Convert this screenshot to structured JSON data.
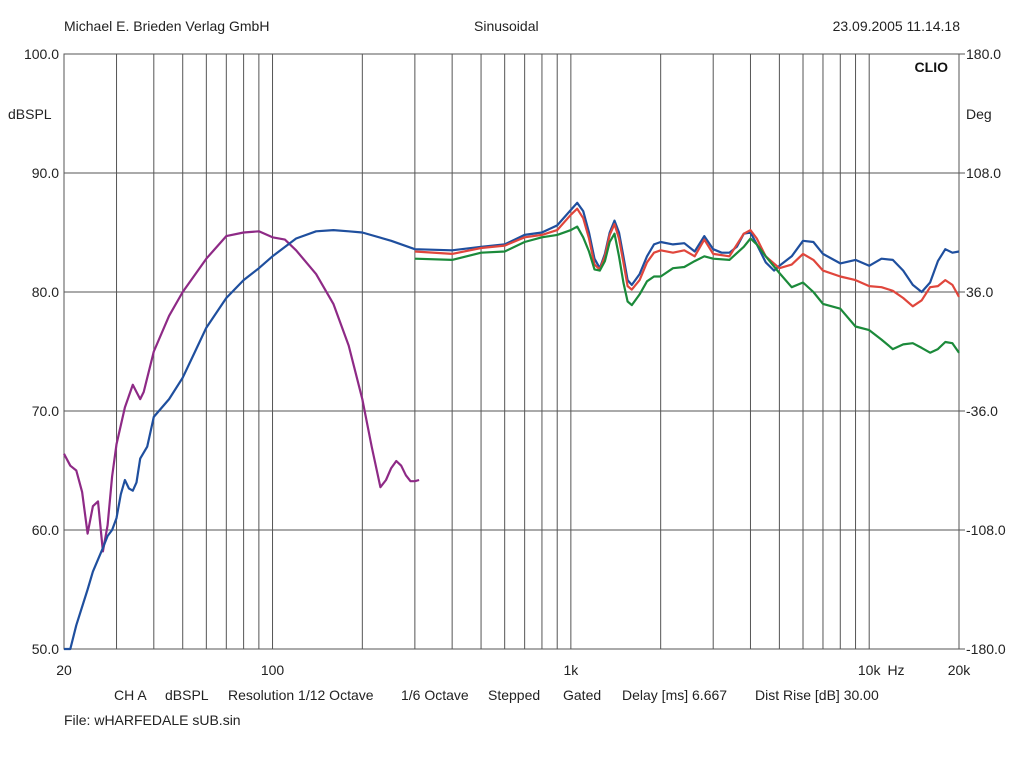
{
  "header": {
    "publisher": "Michael E. Brieden Verlag GmbH",
    "mode": "Sinusoidal",
    "timestamp": "23.09.2005 11.14.18"
  },
  "footer": {
    "settings": [
      "CH A",
      "dBSPL",
      "Resolution 1/12 Octave",
      "1/6 Octave",
      "Stepped",
      "Gated",
      "Delay [ms] 6.667",
      "Dist Rise [dB] 30.00"
    ],
    "file": "File: wHARFEDALE sUB.sin"
  },
  "chart_data": {
    "type": "line",
    "brand": "CLIO",
    "ylabel": "dBSPL",
    "y2label": "Deg",
    "xunit": "Hz",
    "xscale": "log",
    "xlim": [
      20,
      20000
    ],
    "ylim": [
      50,
      100
    ],
    "y2lim": [
      -180,
      180
    ],
    "grid": true,
    "x_ticks": [
      {
        "value": 20,
        "label": "20"
      },
      {
        "value": 100,
        "label": "100"
      },
      {
        "value": 1000,
        "label": "1k"
      },
      {
        "value": 10000,
        "label": "10k"
      },
      {
        "value": 20000,
        "label": "20k"
      }
    ],
    "y_ticks": [
      "50.0",
      "60.0",
      "70.0",
      "80.0",
      "90.0",
      "100.0"
    ],
    "y2_ticks": [
      "-180.0",
      "-108.0",
      "-36.0",
      "36.0",
      "108.0",
      "180.0"
    ],
    "series": [
      {
        "color": "#8e2a86",
        "points": [
          [
            20,
            66.4
          ],
          [
            21,
            65.4
          ],
          [
            22,
            65.0
          ],
          [
            23,
            63.2
          ],
          [
            24,
            59.7
          ],
          [
            25,
            62.0
          ],
          [
            26,
            62.4
          ],
          [
            27,
            58.2
          ],
          [
            28,
            60.4
          ],
          [
            29,
            64.5
          ],
          [
            30,
            67.2
          ],
          [
            32,
            70.3
          ],
          [
            34,
            72.2
          ],
          [
            35,
            71.6
          ],
          [
            36,
            71.0
          ],
          [
            37,
            71.6
          ],
          [
            40,
            75.0
          ],
          [
            45,
            78.0
          ],
          [
            50,
            80.0
          ],
          [
            60,
            82.8
          ],
          [
            70,
            84.7
          ],
          [
            80,
            85.0
          ],
          [
            90,
            85.1
          ],
          [
            100,
            84.6
          ],
          [
            110,
            84.4
          ],
          [
            120,
            83.5
          ],
          [
            140,
            81.5
          ],
          [
            160,
            79.0
          ],
          [
            180,
            75.5
          ],
          [
            200,
            71.0
          ],
          [
            215,
            67.0
          ],
          [
            230,
            63.6
          ],
          [
            240,
            64.2
          ],
          [
            250,
            65.2
          ],
          [
            260,
            65.8
          ],
          [
            270,
            65.4
          ],
          [
            280,
            64.6
          ],
          [
            290,
            64.1
          ],
          [
            300,
            64.1
          ],
          [
            310,
            64.2
          ]
        ]
      },
      {
        "color": "#1f4f9e",
        "points": [
          [
            20,
            50.0
          ],
          [
            21,
            50.0
          ],
          [
            22,
            52.0
          ],
          [
            24,
            55.0
          ],
          [
            25,
            56.5
          ],
          [
            27,
            58.5
          ],
          [
            28,
            59.5
          ],
          [
            29,
            60.0
          ],
          [
            30,
            61.0
          ],
          [
            31,
            63.0
          ],
          [
            32,
            64.2
          ],
          [
            33,
            63.5
          ],
          [
            34,
            63.3
          ],
          [
            35,
            64.0
          ],
          [
            36,
            66.0
          ],
          [
            38,
            67.0
          ],
          [
            40,
            69.5
          ],
          [
            45,
            71.0
          ],
          [
            50,
            72.8
          ],
          [
            55,
            75.0
          ],
          [
            60,
            77.0
          ],
          [
            70,
            79.5
          ],
          [
            80,
            81.0
          ],
          [
            90,
            82.0
          ],
          [
            100,
            83.0
          ],
          [
            120,
            84.5
          ],
          [
            140,
            85.1
          ],
          [
            160,
            85.2
          ],
          [
            180,
            85.1
          ],
          [
            200,
            85.0
          ],
          [
            250,
            84.3
          ],
          [
            300,
            83.6
          ],
          [
            400,
            83.5
          ],
          [
            500,
            83.8
          ],
          [
            600,
            84.0
          ],
          [
            700,
            84.8
          ],
          [
            800,
            85.0
          ],
          [
            900,
            85.6
          ],
          [
            1000,
            86.9
          ],
          [
            1050,
            87.5
          ],
          [
            1100,
            86.8
          ],
          [
            1150,
            85.0
          ],
          [
            1200,
            82.8
          ],
          [
            1250,
            82.0
          ],
          [
            1300,
            83.2
          ],
          [
            1350,
            85.0
          ],
          [
            1400,
            86.0
          ],
          [
            1450,
            85.0
          ],
          [
            1500,
            83.0
          ],
          [
            1550,
            81.0
          ],
          [
            1600,
            80.6
          ],
          [
            1700,
            81.5
          ],
          [
            1800,
            83.0
          ],
          [
            1900,
            84.0
          ],
          [
            2000,
            84.2
          ],
          [
            2200,
            84.0
          ],
          [
            2400,
            84.1
          ],
          [
            2600,
            83.4
          ],
          [
            2800,
            84.7
          ],
          [
            3000,
            83.6
          ],
          [
            3200,
            83.3
          ],
          [
            3400,
            83.3
          ],
          [
            3600,
            83.8
          ],
          [
            3800,
            84.9
          ],
          [
            4000,
            85.0
          ],
          [
            4200,
            84.0
          ],
          [
            4500,
            82.5
          ],
          [
            4800,
            81.8
          ],
          [
            5000,
            82.2
          ],
          [
            5500,
            83.0
          ],
          [
            6000,
            84.3
          ],
          [
            6500,
            84.2
          ],
          [
            7000,
            83.2
          ],
          [
            8000,
            82.4
          ],
          [
            9000,
            82.7
          ],
          [
            10000,
            82.2
          ],
          [
            11000,
            82.8
          ],
          [
            12000,
            82.7
          ],
          [
            13000,
            81.8
          ],
          [
            14000,
            80.6
          ],
          [
            15000,
            80.0
          ],
          [
            16000,
            80.8
          ],
          [
            17000,
            82.6
          ],
          [
            18000,
            83.6
          ],
          [
            19000,
            83.3
          ],
          [
            20000,
            83.4
          ]
        ]
      },
      {
        "color": "#e0463c",
        "points": [
          [
            300,
            83.4
          ],
          [
            400,
            83.2
          ],
          [
            500,
            83.7
          ],
          [
            600,
            83.9
          ],
          [
            700,
            84.6
          ],
          [
            800,
            84.8
          ],
          [
            900,
            85.2
          ],
          [
            1000,
            86.5
          ],
          [
            1050,
            87.0
          ],
          [
            1100,
            86.2
          ],
          [
            1150,
            84.5
          ],
          [
            1200,
            82.3
          ],
          [
            1250,
            81.9
          ],
          [
            1300,
            83.0
          ],
          [
            1350,
            84.8
          ],
          [
            1400,
            85.7
          ],
          [
            1450,
            84.5
          ],
          [
            1500,
            82.5
          ],
          [
            1550,
            80.5
          ],
          [
            1600,
            80.2
          ],
          [
            1700,
            81.0
          ],
          [
            1800,
            82.5
          ],
          [
            1900,
            83.3
          ],
          [
            2000,
            83.5
          ],
          [
            2200,
            83.3
          ],
          [
            2400,
            83.5
          ],
          [
            2600,
            83.0
          ],
          [
            2800,
            84.4
          ],
          [
            3000,
            83.2
          ],
          [
            3400,
            83.0
          ],
          [
            3800,
            84.9
          ],
          [
            4000,
            85.2
          ],
          [
            4200,
            84.5
          ],
          [
            4500,
            83.0
          ],
          [
            5000,
            82.0
          ],
          [
            5500,
            82.3
          ],
          [
            6000,
            83.2
          ],
          [
            6500,
            82.7
          ],
          [
            7000,
            81.8
          ],
          [
            8000,
            81.3
          ],
          [
            9000,
            81.0
          ],
          [
            10000,
            80.5
          ],
          [
            11000,
            80.4
          ],
          [
            12000,
            80.1
          ],
          [
            13000,
            79.5
          ],
          [
            14000,
            78.8
          ],
          [
            15000,
            79.3
          ],
          [
            16000,
            80.4
          ],
          [
            17000,
            80.5
          ],
          [
            18000,
            81.0
          ],
          [
            19000,
            80.6
          ],
          [
            20000,
            79.6
          ]
        ]
      },
      {
        "color": "#1b8a3a",
        "points": [
          [
            300,
            82.8
          ],
          [
            400,
            82.7
          ],
          [
            500,
            83.3
          ],
          [
            600,
            83.4
          ],
          [
            700,
            84.2
          ],
          [
            800,
            84.6
          ],
          [
            900,
            84.8
          ],
          [
            1000,
            85.2
          ],
          [
            1050,
            85.5
          ],
          [
            1100,
            84.6
          ],
          [
            1150,
            83.4
          ],
          [
            1200,
            81.9
          ],
          [
            1250,
            81.8
          ],
          [
            1300,
            82.6
          ],
          [
            1350,
            84.2
          ],
          [
            1400,
            84.9
          ],
          [
            1450,
            83.0
          ],
          [
            1500,
            80.8
          ],
          [
            1550,
            79.2
          ],
          [
            1600,
            78.9
          ],
          [
            1700,
            79.8
          ],
          [
            1800,
            80.9
          ],
          [
            1900,
            81.3
          ],
          [
            2000,
            81.3
          ],
          [
            2200,
            82.0
          ],
          [
            2400,
            82.1
          ],
          [
            2600,
            82.6
          ],
          [
            2800,
            83.0
          ],
          [
            3000,
            82.8
          ],
          [
            3400,
            82.7
          ],
          [
            3800,
            83.8
          ],
          [
            4000,
            84.5
          ],
          [
            4200,
            84.0
          ],
          [
            4500,
            83.0
          ],
          [
            5000,
            81.6
          ],
          [
            5500,
            80.4
          ],
          [
            6000,
            80.8
          ],
          [
            6500,
            80.0
          ],
          [
            7000,
            79.0
          ],
          [
            8000,
            78.6
          ],
          [
            9000,
            77.1
          ],
          [
            10000,
            76.8
          ],
          [
            11000,
            76.0
          ],
          [
            12000,
            75.2
          ],
          [
            13000,
            75.6
          ],
          [
            14000,
            75.7
          ],
          [
            15000,
            75.3
          ],
          [
            16000,
            74.9
          ],
          [
            17000,
            75.2
          ],
          [
            18000,
            75.8
          ],
          [
            19000,
            75.7
          ],
          [
            20000,
            74.9
          ]
        ]
      }
    ]
  }
}
